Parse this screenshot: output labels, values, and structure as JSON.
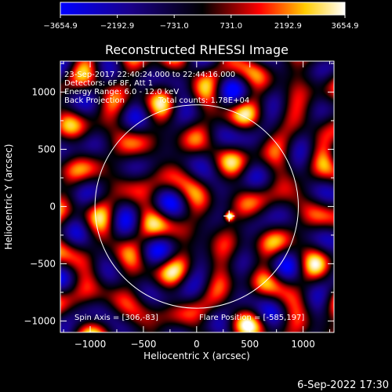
{
  "chart_data": {
    "type": "heatmap",
    "title": "Reconstructed RHESSI Image",
    "xlabel": "Heliocentric X (arcsec)",
    "ylabel": "Heliocentric Y (arcsec)",
    "xlim": [
      -1280,
      1290
    ],
    "ylim": [
      -1100,
      1270
    ],
    "xticks": [
      -1000,
      -500,
      0,
      500,
      1000
    ],
    "xtick_labels": [
      "−1000",
      "−500",
      "0",
      "500",
      "1000"
    ],
    "yticks": [
      -1000,
      -500,
      0,
      500,
      1000
    ],
    "ytick_labels": [
      "−1000",
      "−500",
      "0",
      "500",
      "1000"
    ],
    "colorbar": {
      "min": -3654.9,
      "max": 3654.9,
      "ticks": [
        -3654.9,
        -2192.9,
        -731.0,
        731.0,
        2192.9,
        3654.9
      ],
      "tick_labels": [
        "−3654.9",
        "−2192.9",
        "−731.0",
        "731.0",
        "2192.9",
        "3654.9"
      ],
      "colors": [
        "#0000ff",
        "#000000",
        "#ff0000",
        "#ffff00",
        "#ffffff"
      ]
    },
    "solar_limb": {
      "center": [
        0,
        0
      ],
      "radius": 955
    },
    "flare_marker": [
      305,
      -83
    ],
    "annotations": [
      "23-Sep-2017 22:40:24.000 to 22:44:16.000",
      "Detectors: 6F 8F, Att 1",
      "Energy Range: 6.0 - 12.0 keV",
      "Back Projection",
      "Total counts: 1.78E+04"
    ],
    "spin_axis_label": "Spin Axis = [306,-83]",
    "flare_position_label": "Flare Position = [-585,197]"
  },
  "footer_date": "6-Sep-2022 17:30"
}
